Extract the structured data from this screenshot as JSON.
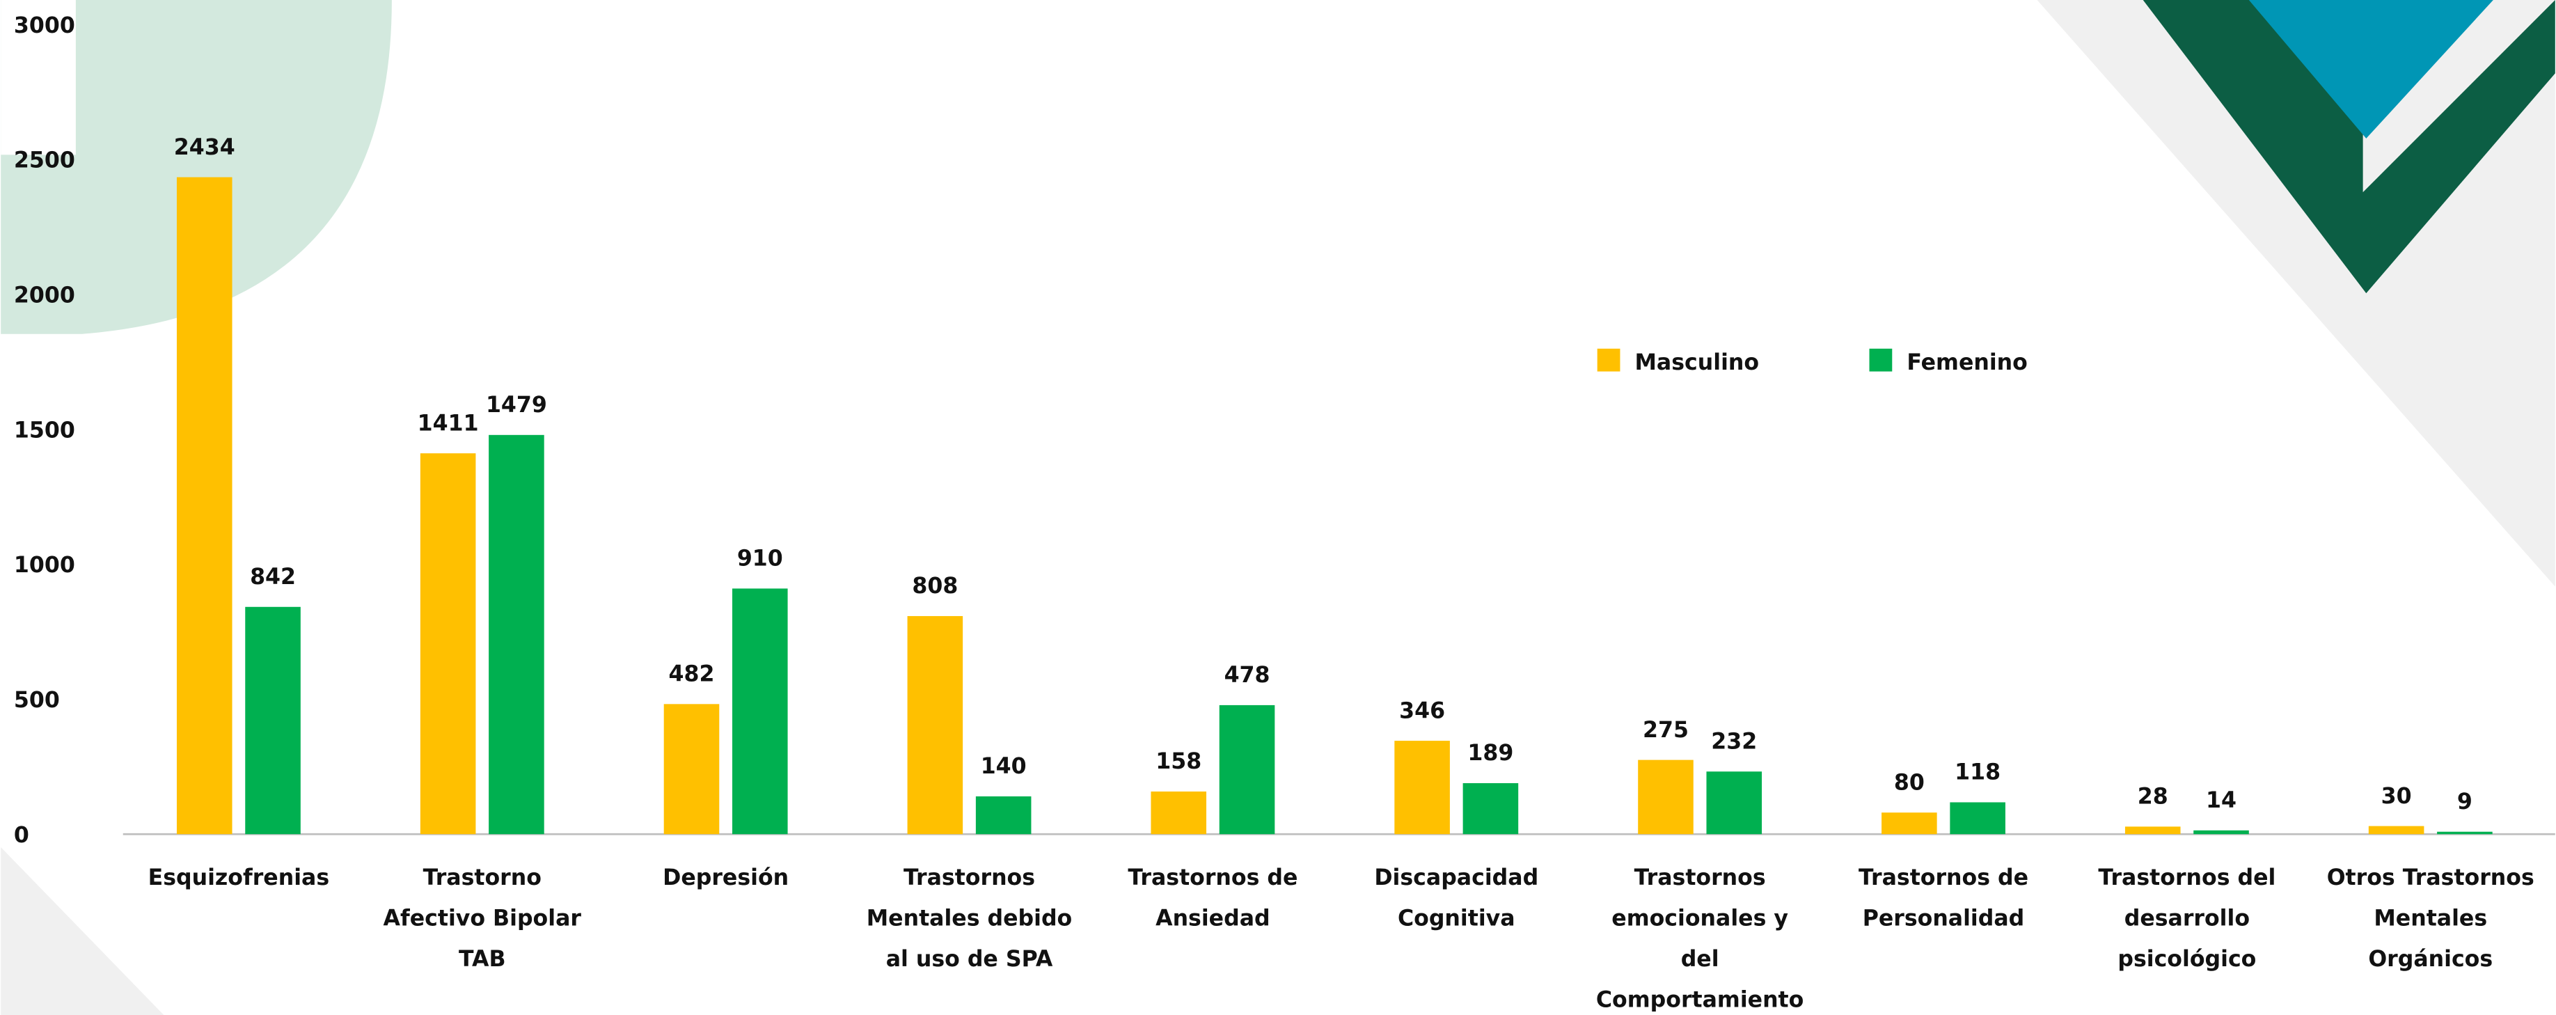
{
  "chart_data": {
    "type": "bar",
    "categories": [
      "Esquizofrenias",
      "Trastorno\nAfectivo Bipolar\nTAB",
      "Depresión",
      "Trastornos\nMentales debido\nal uso de SPA",
      "Trastornos de\nAnsiedad",
      "Discapacidad\nCognitiva",
      "Trastornos\nemocionales y\ndel\nComportamiento",
      "Trastornos de\nPersonalidad",
      "Trastornos del\ndesarrollo\npsicológico",
      "Otros Trastornos\nMentales\nOrgánicos"
    ],
    "series": [
      {
        "name": "Masculino",
        "color": "#ffc000",
        "values": [
          2434,
          1411,
          482,
          808,
          158,
          346,
          275,
          80,
          28,
          30
        ]
      },
      {
        "name": "Femenino",
        "color": "#00b050",
        "values": [
          842,
          1479,
          910,
          140,
          478,
          189,
          232,
          118,
          14,
          9
        ]
      }
    ],
    "ylim": [
      0,
      3000
    ],
    "yticks": [
      0,
      500,
      1000,
      1500,
      2000,
      2500,
      3000
    ],
    "grid": false
  }
}
